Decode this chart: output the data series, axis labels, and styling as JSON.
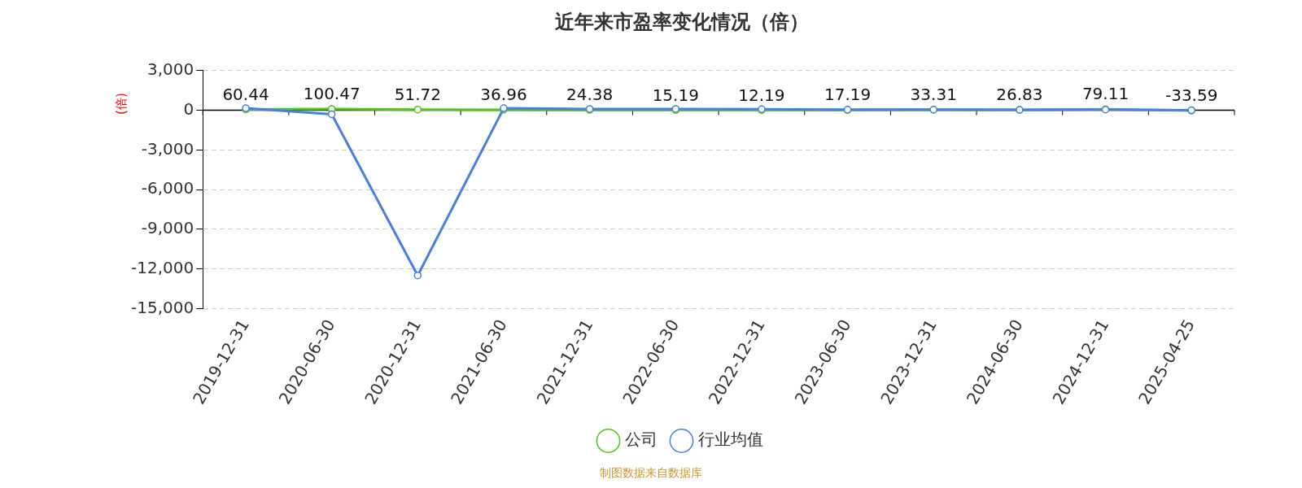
{
  "chart_data": {
    "type": "line",
    "title": "近年来市盈率变化情况（倍）",
    "ylabel": "(倍)",
    "categories": [
      "2019-12-31",
      "2020-06-30",
      "2020-12-31",
      "2021-06-30",
      "2021-12-31",
      "2022-06-30",
      "2022-12-31",
      "2023-06-30",
      "2023-12-31",
      "2024-06-30",
      "2024-12-31",
      "2025-04-25"
    ],
    "series": [
      {
        "name": "公司",
        "color": "#52c41a",
        "values": [
          60.44,
          100.47,
          51.72,
          36.96,
          24.38,
          15.19,
          12.19,
          17.19,
          33.31,
          26.83,
          79.11,
          -33.59
        ],
        "value_labels": [
          "60.44",
          "100.47",
          "51.72",
          "36.96",
          "24.38",
          "15.19",
          "12.19",
          "17.19",
          "33.31",
          "26.83",
          "79.11",
          "-33.59"
        ]
      },
      {
        "name": "行业均值",
        "color": "#4a7ee0",
        "values": [
          150,
          -300,
          -12500,
          150,
          100,
          100,
          80,
          50,
          50,
          30,
          50,
          10
        ]
      }
    ],
    "ylim": [
      -15000,
      3000
    ],
    "yticks": [
      {
        "value": -15000,
        "label": "-15,000"
      },
      {
        "value": -12000,
        "label": "-12,000"
      },
      {
        "value": -9000,
        "label": "-9,000"
      },
      {
        "value": -6000,
        "label": "-6,000"
      },
      {
        "value": -3000,
        "label": "-3,000"
      },
      0,
      {
        "value": 3000,
        "label": "3,000"
      }
    ],
    "grid": "y",
    "legend": "bottom",
    "marker": "circle",
    "line_style": "solid",
    "annotations": [
      "制图数据来自数据库"
    ]
  }
}
